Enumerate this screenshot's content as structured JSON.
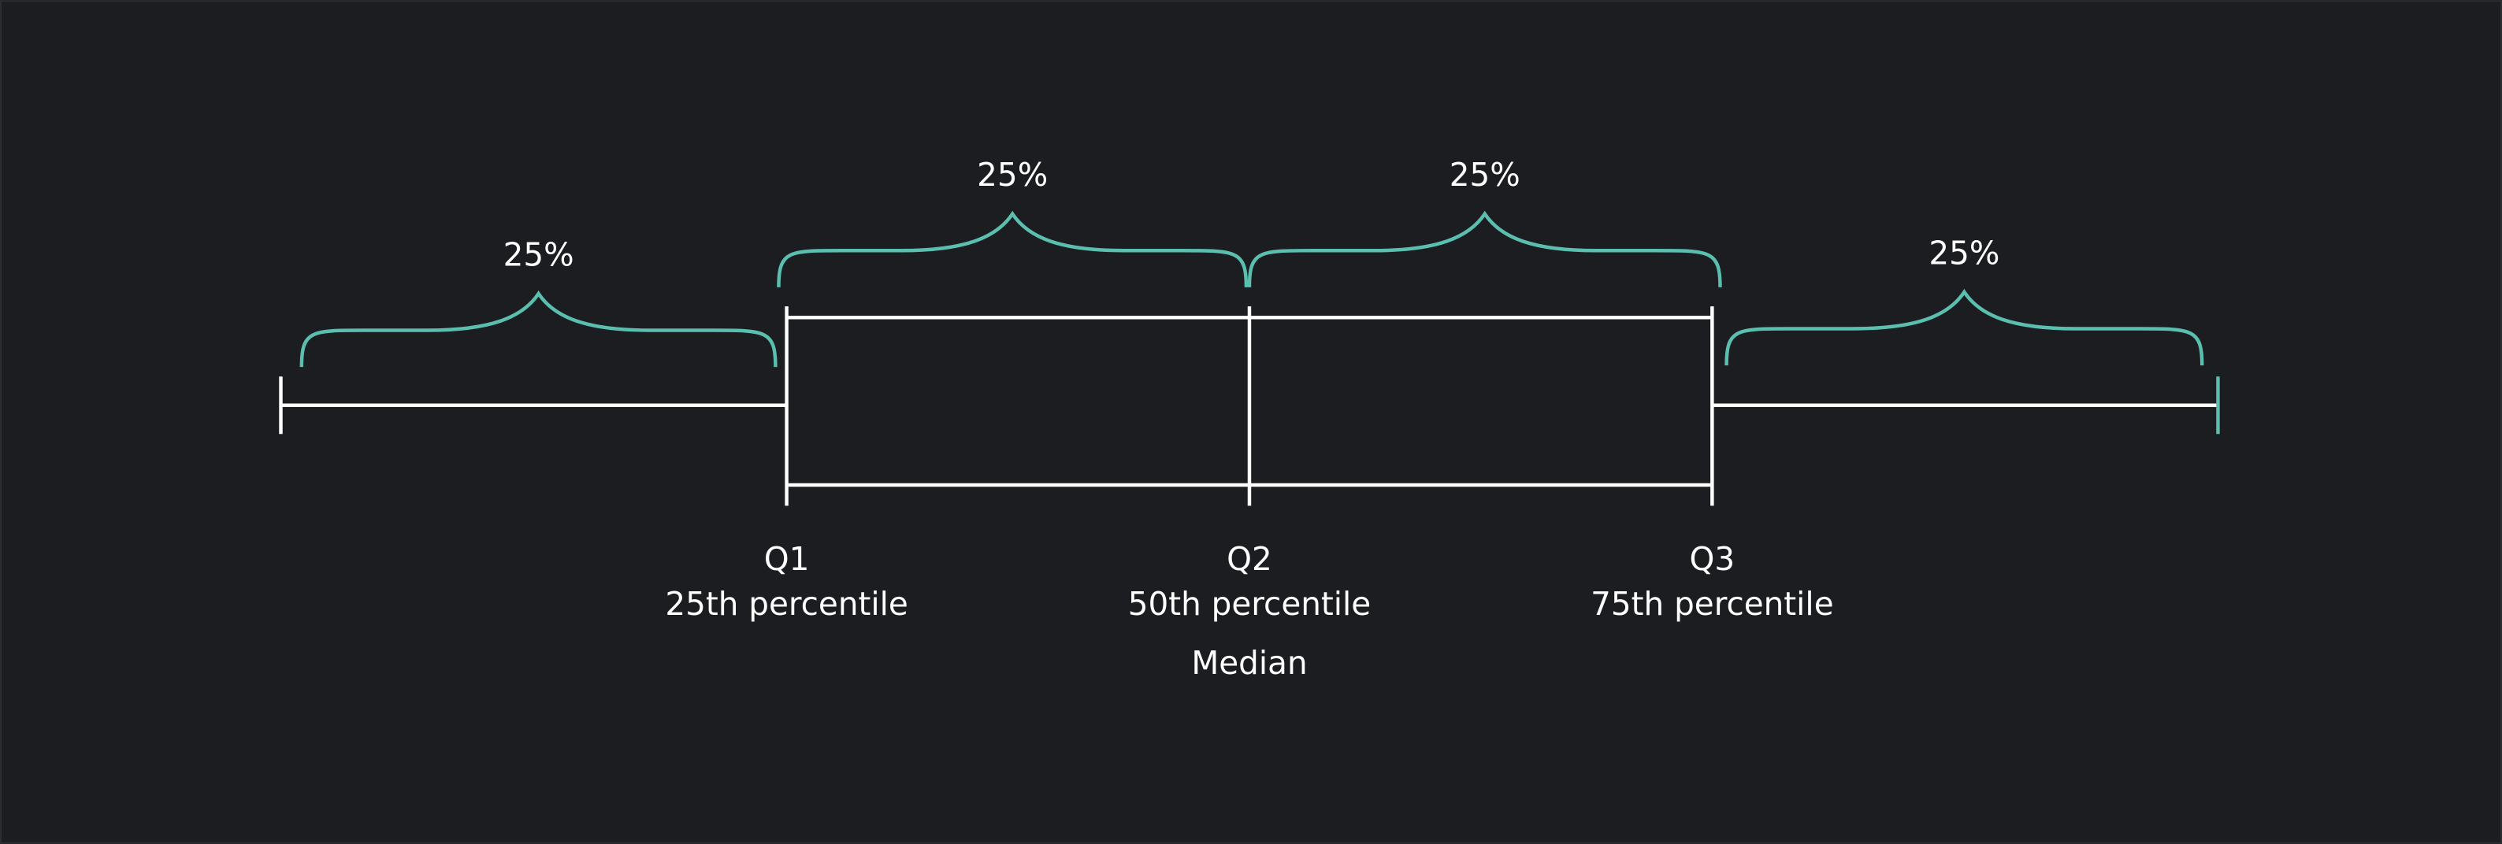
{
  "braces": [
    {
      "label": "25%"
    },
    {
      "label": "25%"
    },
    {
      "label": "25%"
    },
    {
      "label": "25%"
    }
  ],
  "quartiles": [
    {
      "name": "Q1",
      "description": "25th percentile"
    },
    {
      "name": "Q2",
      "description": "50th percentile",
      "note": "Median"
    },
    {
      "name": "Q3",
      "description": "75th percentile"
    }
  ]
}
